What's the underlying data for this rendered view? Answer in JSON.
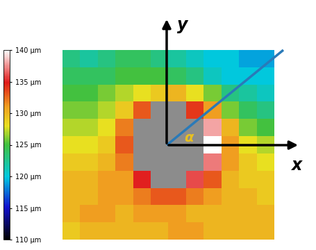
{
  "chart_data": {
    "type": "heatmap",
    "xlabel": "x",
    "ylabel": "y",
    "annotations": [
      "α"
    ],
    "tick_labels": false,
    "cells": [
      [
        123,
        122,
        123,
        124,
        124,
        123,
        122,
        121,
        120,
        120,
        119,
        119
      ],
      [
        124,
        124,
        124,
        125,
        125,
        125,
        124,
        123,
        121,
        120,
        120,
        120
      ],
      [
        125,
        125,
        126,
        127,
        128,
        129,
        130,
        128,
        126,
        123,
        122,
        121
      ],
      [
        126,
        126,
        127,
        129,
        133,
        null,
        null,
        134,
        131,
        126,
        124,
        123
      ],
      [
        127,
        127,
        128,
        132,
        null,
        null,
        null,
        null,
        138,
        130,
        126,
        125
      ],
      [
        128,
        128,
        129,
        133,
        null,
        null,
        null,
        null,
        140,
        131,
        128,
        127
      ],
      [
        129,
        129,
        130,
        132,
        null,
        null,
        null,
        null,
        137,
        131,
        129,
        128
      ],
      [
        130,
        130,
        131,
        131,
        135,
        null,
        null,
        136,
        133,
        130,
        129,
        129
      ],
      [
        130,
        130,
        131,
        131,
        132,
        133,
        133,
        132,
        131,
        130,
        130,
        129
      ],
      [
        130,
        131,
        131,
        130,
        131,
        131,
        131,
        130,
        130,
        130,
        130,
        130
      ],
      [
        129,
        130,
        130,
        130,
        130,
        130,
        131,
        131,
        130,
        130,
        130,
        130
      ]
    ],
    "colorbar_range": [
      110,
      140
    ],
    "colorbar_ticks": [
      {
        "value": 110,
        "label": "110 µm"
      },
      {
        "value": 115,
        "label": "115 µm"
      },
      {
        "value": 120,
        "label": "120 µm"
      },
      {
        "value": 125,
        "label": "125 µm"
      },
      {
        "value": 130,
        "label": "130 µm"
      },
      {
        "value": 135,
        "label": "135 µm"
      },
      {
        "value": 140,
        "label": "140 µm"
      }
    ]
  }
}
